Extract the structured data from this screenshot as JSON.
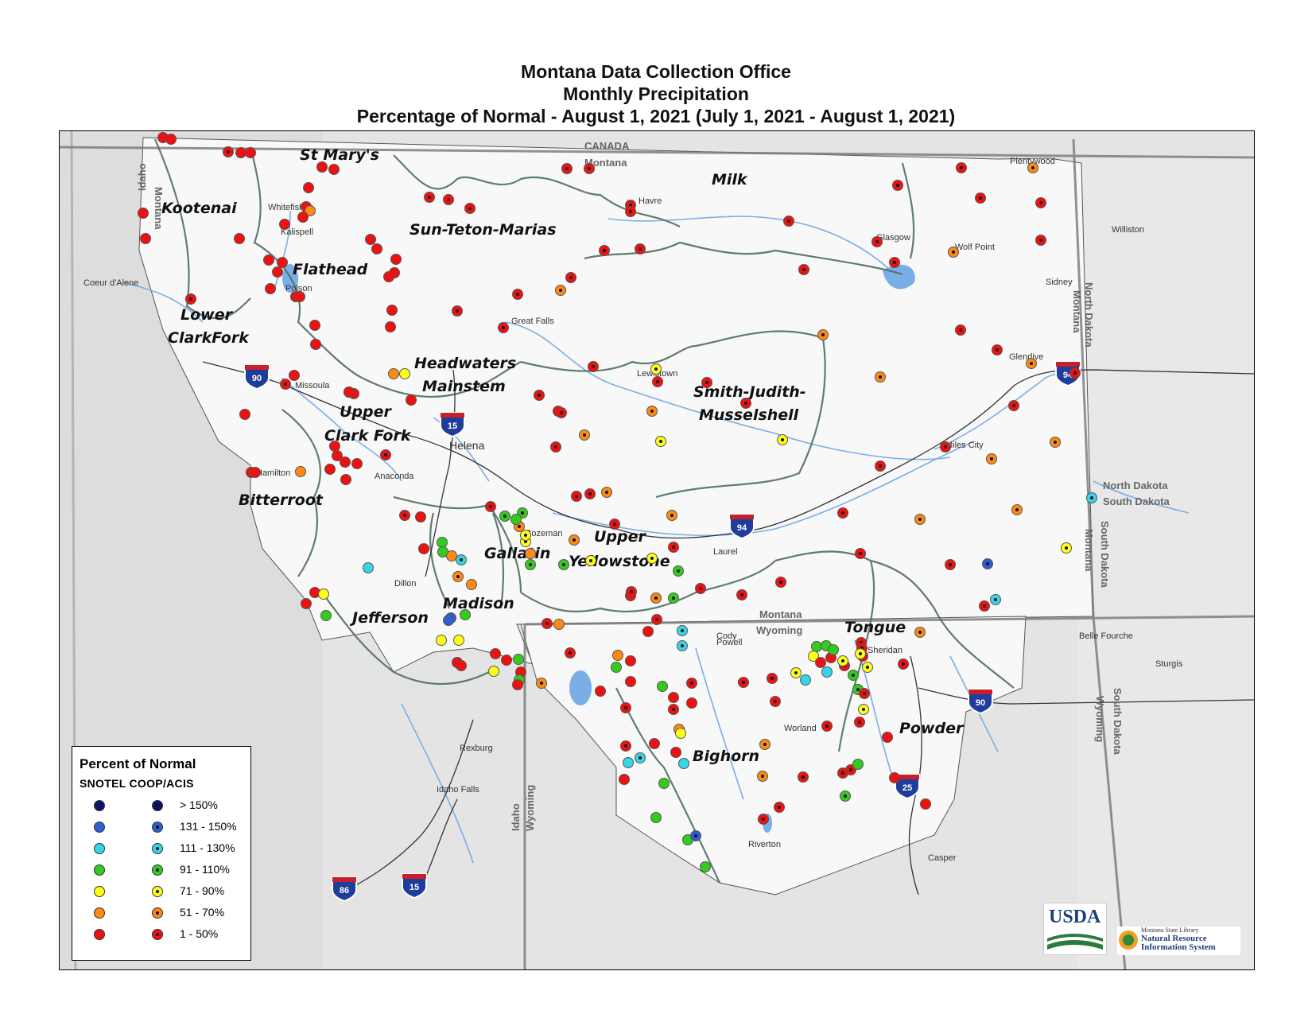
{
  "title": {
    "line1": "Montana Data Collection Office",
    "line2": "Monthly Precipitation",
    "line3": "Percentage of Normal - August 1, 2021 (July 1, 2021 - August 1, 2021)"
  },
  "colors": {
    "gt150": "#0b1566",
    "131_150": "#2f5fcf",
    "111_130": "#36d6ea",
    "91_110": "#33cc1e",
    "71_90": "#ffff17",
    "51_70": "#ff8a12",
    "1_50": "#ee1111",
    "water": "#7aaee6",
    "basin_border": "#4f6f5f",
    "montana_fill": "#fbfbfb",
    "terrain": "#dcdcdc"
  },
  "legend": {
    "title": "Percent of Normal",
    "subtitle": "SNOTEL  COOP/ACIS",
    "rows": [
      {
        "label": "> 150%",
        "color_key": "gt150"
      },
      {
        "label": "131 - 150%",
        "color_key": "131_150"
      },
      {
        "label": "111 - 130%",
        "color_key": "111_130"
      },
      {
        "label": "91 - 110%",
        "color_key": "91_110"
      },
      {
        "label": "71 - 90%",
        "color_key": "71_90"
      },
      {
        "label": "51 - 70%",
        "color_key": "51_70"
      },
      {
        "label": "1 - 50%",
        "color_key": "1_50"
      }
    ]
  },
  "basins": [
    "Kootenai",
    "St Mary's",
    "Milk",
    "Sun-Teton-Marias",
    "Flathead",
    "Lower",
    "ClarkFork",
    "Headwaters",
    "Mainstem",
    "Smith-Judith-",
    "Musselshell",
    "Upper",
    "Clark Fork",
    "Bitterroot",
    "Upper",
    "Yellowstone",
    "Gallatin",
    "Madison",
    "Jefferson",
    "Tongue",
    "Powder",
    "Bighorn"
  ],
  "places": [
    "Whitefish",
    "Kalispell",
    "Polson",
    "Coeur d'Alene",
    "Missoula",
    "Hamilton",
    "Anaconda",
    "Helena",
    "Great Falls",
    "Havre",
    "Glasgow",
    "Plentywood",
    "Wolf Point",
    "Williston",
    "Sidney",
    "Glendive",
    "Lewistown",
    "Miles City",
    "Bozeman",
    "Laurel",
    "Dillon",
    "Cody",
    "Powell",
    "Sheridan",
    "Worland",
    "Riverton",
    "Casper",
    "Belle Fourche",
    "Sturgis",
    "Rexburg",
    "Idaho Falls"
  ],
  "state_labels": [
    "CANADA",
    "Montana",
    "Idaho",
    "Montana",
    "North Dakota",
    "Montana",
    "North Dakota",
    "South Dakota",
    "Montana",
    "South Dakota",
    "Montana",
    "Wyoming",
    "Idaho",
    "Wyoming",
    "South Dakota",
    "Wyoming"
  ],
  "highways": [
    "90",
    "15",
    "94",
    "94",
    "90",
    "25",
    "86",
    "15"
  ],
  "logos": {
    "usda": "USDA",
    "nris_line1": "Montana State Library",
    "nris_line2": "Natural Resource",
    "nris_line3": "Information System"
  }
}
